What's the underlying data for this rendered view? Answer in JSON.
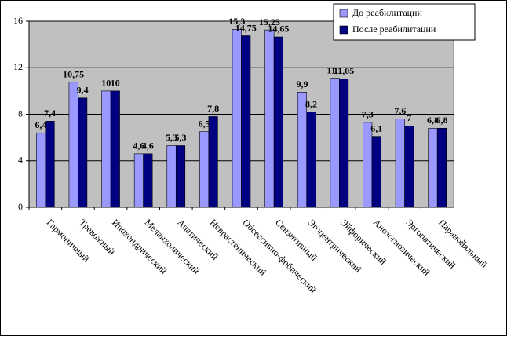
{
  "chart_data": {
    "type": "bar",
    "categories": [
      "Гармоничный",
      "Тревожный",
      "Ипохондрический",
      "Меланхолический",
      "Апатический",
      "Неврастенический",
      "Обсессивно-фобический",
      "Сензитивный",
      "Эгоцентрический",
      "Эйфорический",
      "Анозогнозический",
      "Эргопатический",
      "Паранойяльный"
    ],
    "series": [
      {
        "name": "До реабилитации",
        "color": "#9999ff",
        "values": [
          6.4,
          10.75,
          10,
          4.6,
          5.3,
          6.5,
          15.3,
          15.25,
          9.9,
          11.1,
          7.3,
          7.6,
          6.8
        ],
        "value_labels": [
          "6,4",
          "10,75",
          "10",
          "4,6",
          "5,3",
          "6,5",
          "15,3",
          "15,25",
          "9,9",
          "11,1",
          "7,3",
          "7,6",
          "6,8"
        ]
      },
      {
        "name": "После реабилитации",
        "color": "#000080",
        "values": [
          7.4,
          9.4,
          10,
          4.6,
          5.3,
          7.8,
          14.75,
          14.65,
          8.2,
          11.05,
          6.1,
          7,
          6.8
        ],
        "value_labels": [
          "7,4",
          "9,4",
          "10",
          "4,6",
          "5,3",
          "7,8",
          "14,75",
          "14,65",
          "8,2",
          "11,05",
          "6,1",
          "7",
          "6,8"
        ]
      }
    ],
    "ylim": [
      0,
      16
    ],
    "yticks": [
      0,
      4,
      8,
      12,
      16
    ],
    "grid": true,
    "legend": "top-right",
    "plot_background": "#c0c0c0"
  }
}
